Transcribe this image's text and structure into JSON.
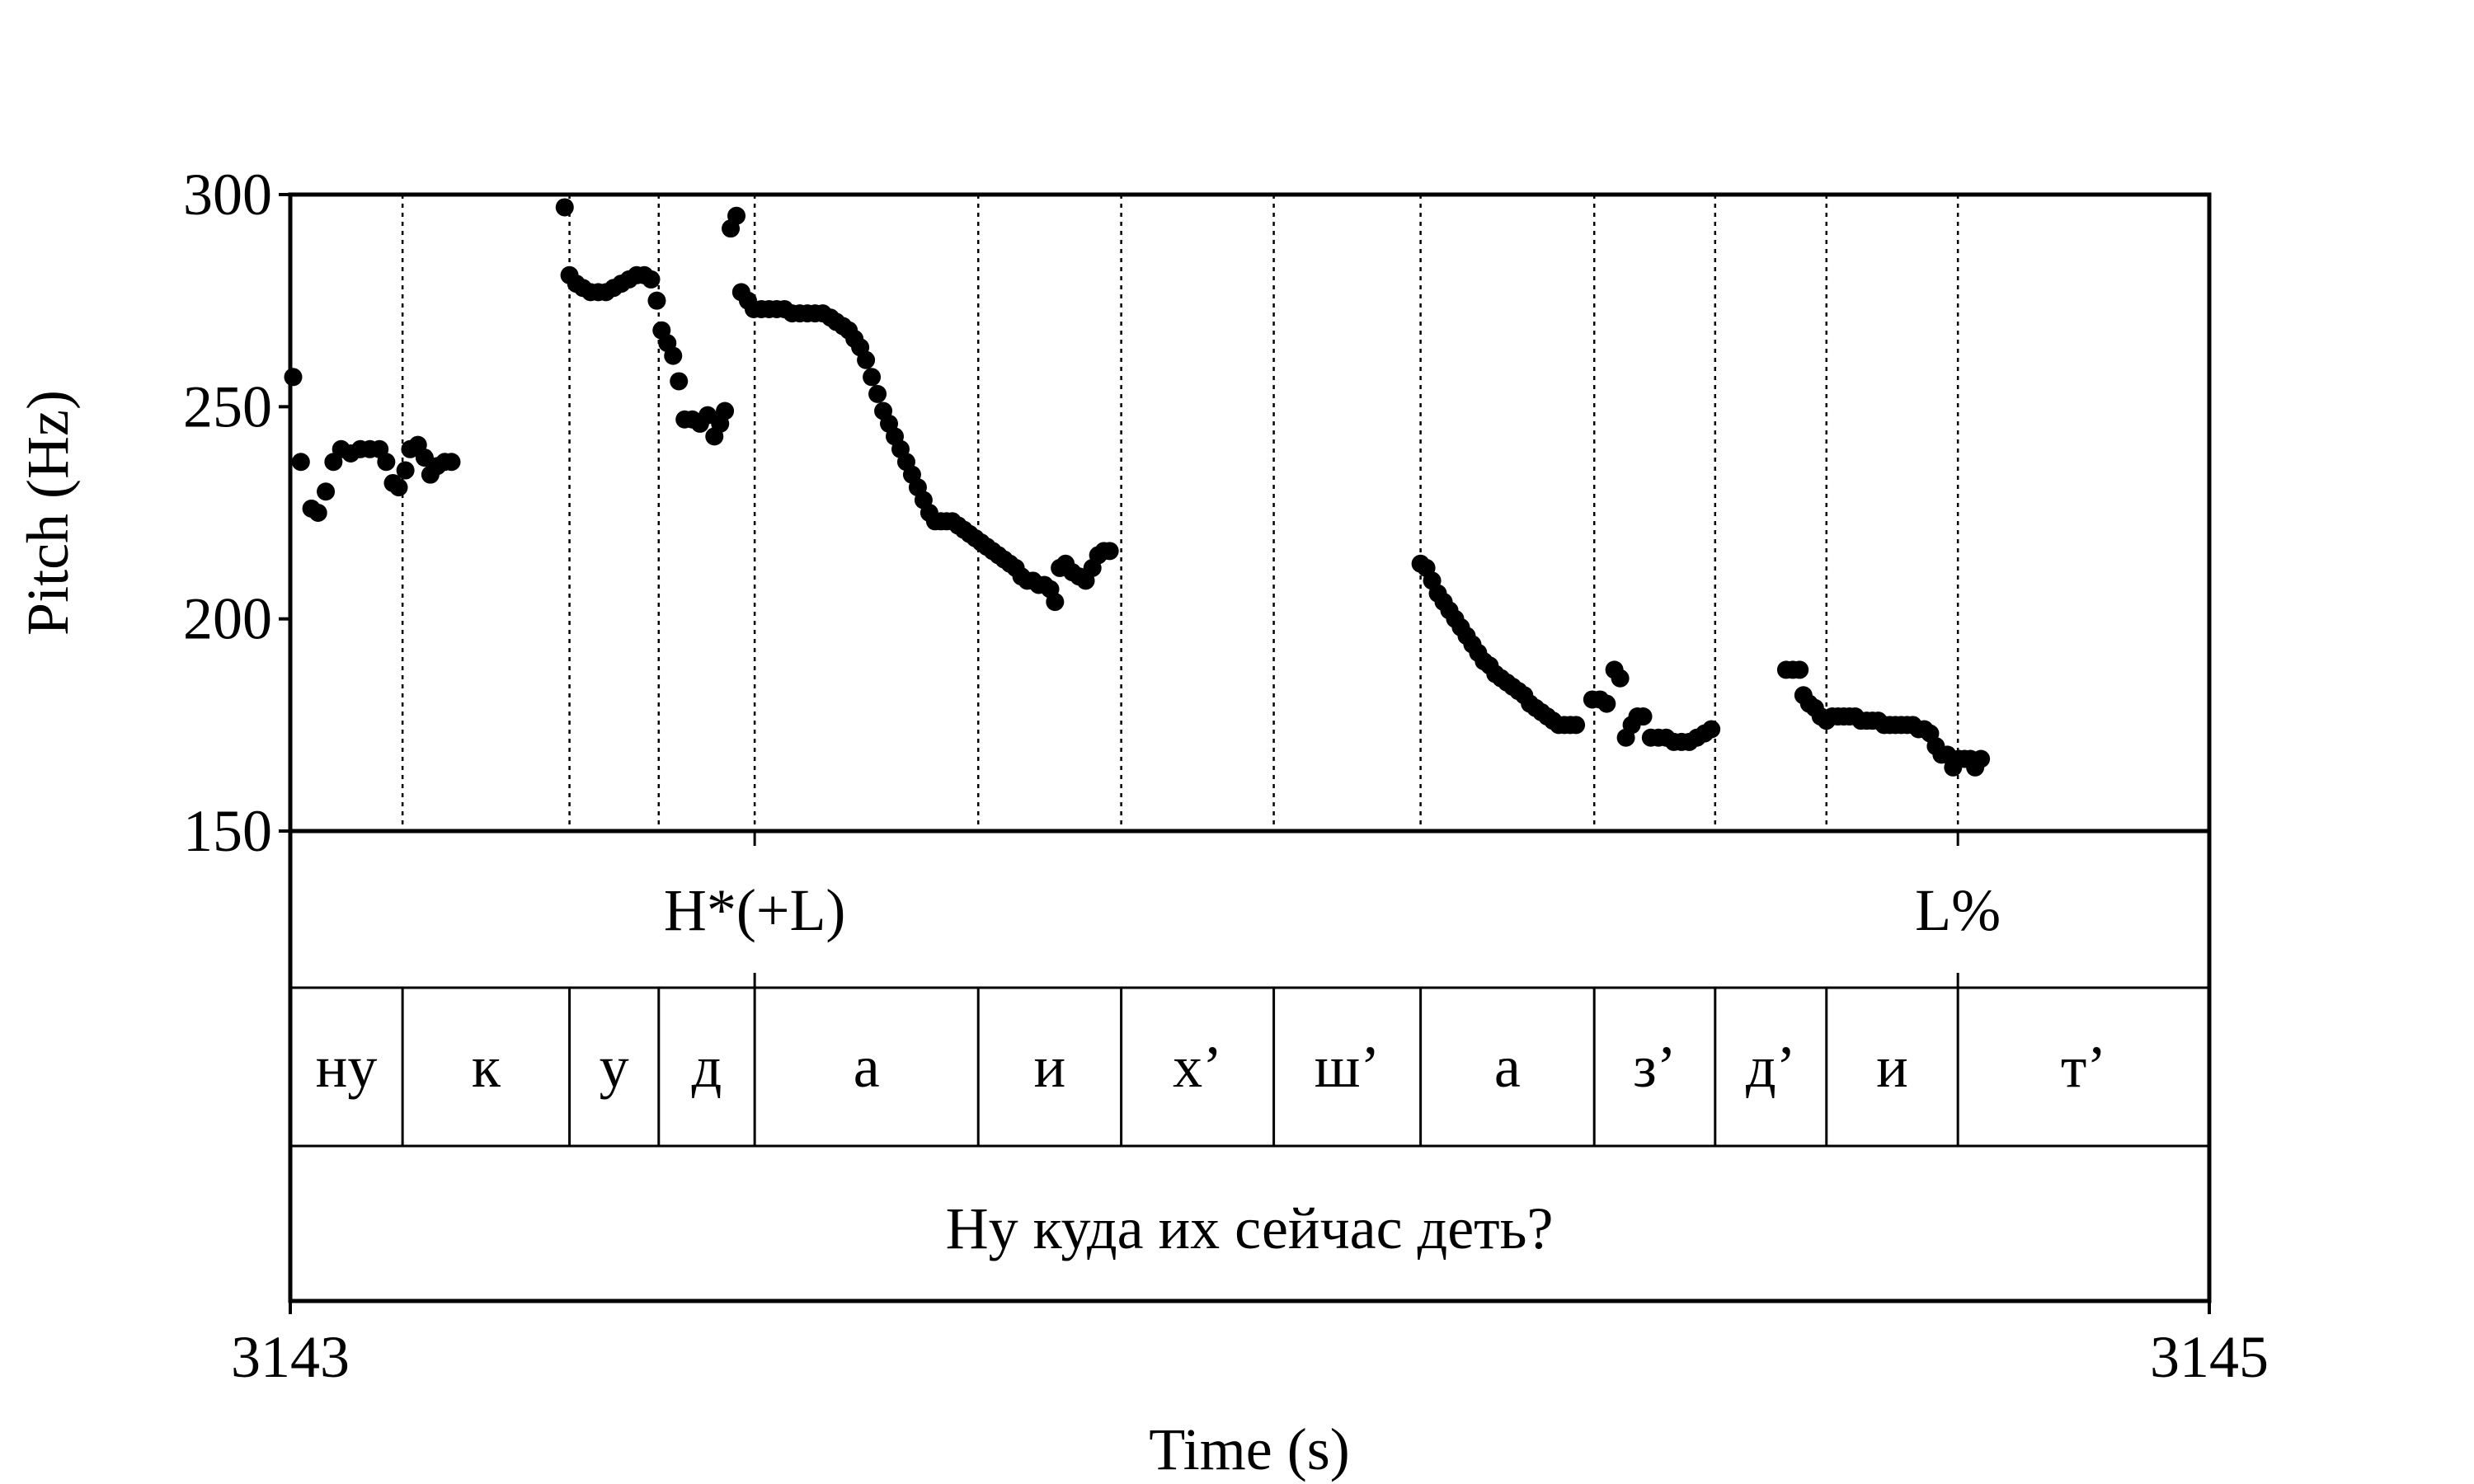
{
  "chart_data": {
    "type": "scatter",
    "ylabel": "Pitch (Hz)",
    "xlabel": "Time (s)",
    "xlim": [
      3143,
      3145
    ],
    "ylim": [
      150,
      300
    ],
    "x_ticks": [
      3143,
      3145
    ],
    "y_ticks": [
      150,
      200,
      250,
      300
    ],
    "boundaries": [
      3143.0,
      3143.117,
      3143.291,
      3143.384,
      3143.484,
      3143.717,
      3143.866,
      3144.025,
      3144.178,
      3144.359,
      3144.485,
      3144.601,
      3144.738,
      3145.0
    ],
    "tone_tier": [
      {
        "label": "H*(+L)",
        "time": 3143.484
      },
      {
        "label": "L%",
        "time": 3144.738
      }
    ],
    "segments": [
      "ну",
      "к",
      "у",
      "д",
      "а",
      "и",
      "х’",
      "ш’",
      "а",
      "з’",
      "д’",
      "и",
      "т’"
    ],
    "sentence": "Ну куда их сейчас деть?",
    "series": [
      {
        "values": [
          [
            3143.003,
            257
          ],
          [
            3143.011,
            237
          ],
          [
            3143.022,
            226
          ],
          [
            3143.029,
            225
          ],
          [
            3143.037,
            230
          ],
          [
            3143.045,
            237
          ],
          [
            3143.053,
            240
          ],
          [
            3143.063,
            239
          ],
          [
            3143.073,
            240
          ],
          [
            3143.083,
            240
          ],
          [
            3143.093,
            240
          ],
          [
            3143.1,
            237
          ],
          [
            3143.107,
            232
          ],
          [
            3143.113,
            231
          ],
          [
            3143.12,
            235
          ],
          [
            3143.125,
            240
          ],
          [
            3143.133,
            241
          ],
          [
            3143.14,
            238
          ],
          [
            3143.146,
            234
          ],
          [
            3143.153,
            236
          ],
          [
            3143.161,
            237
          ],
          [
            3143.168,
            237
          ],
          [
            3143.286,
            297
          ],
          [
            3143.291,
            281
          ],
          [
            3143.298,
            279
          ],
          [
            3143.305,
            278
          ],
          [
            3143.313,
            277
          ],
          [
            3143.321,
            277
          ],
          [
            3143.329,
            277
          ],
          [
            3143.337,
            278
          ],
          [
            3143.345,
            279
          ],
          [
            3143.353,
            280
          ],
          [
            3143.361,
            281
          ],
          [
            3143.369,
            281
          ],
          [
            3143.376,
            280
          ],
          [
            3143.382,
            275
          ],
          [
            3143.387,
            268
          ],
          [
            3143.393,
            265
          ],
          [
            3143.399,
            262
          ],
          [
            3143.405,
            256
          ],
          [
            3143.411,
            247
          ],
          [
            3143.419,
            247
          ],
          [
            3143.427,
            246
          ],
          [
            3143.435,
            248
          ],
          [
            3143.442,
            243
          ],
          [
            3143.448,
            246
          ],
          [
            3143.453,
            249
          ],
          [
            3143.459,
            292
          ],
          [
            3143.465,
            295
          ],
          [
            3143.47,
            277
          ],
          [
            3143.477,
            275
          ],
          [
            3143.483,
            273
          ],
          [
            3143.491,
            273
          ],
          [
            3143.499,
            273
          ],
          [
            3143.507,
            273
          ],
          [
            3143.515,
            273
          ],
          [
            3143.523,
            272
          ],
          [
            3143.531,
            272
          ],
          [
            3143.539,
            272
          ],
          [
            3143.547,
            272
          ],
          [
            3143.555,
            272
          ],
          [
            3143.563,
            271
          ],
          [
            3143.569,
            270
          ],
          [
            3143.576,
            269
          ],
          [
            3143.582,
            268
          ],
          [
            3143.588,
            266
          ],
          [
            3143.594,
            264
          ],
          [
            3143.6,
            261
          ],
          [
            3143.606,
            257
          ],
          [
            3143.612,
            253
          ],
          [
            3143.618,
            249
          ],
          [
            3143.624,
            246
          ],
          [
            3143.63,
            243
          ],
          [
            3143.636,
            240
          ],
          [
            3143.642,
            237
          ],
          [
            3143.648,
            234
          ],
          [
            3143.654,
            231
          ],
          [
            3143.66,
            228
          ],
          [
            3143.666,
            225
          ],
          [
            3143.672,
            223
          ],
          [
            3143.678,
            223
          ],
          [
            3143.684,
            223
          ],
          [
            3143.69,
            223
          ],
          [
            3143.696,
            222
          ],
          [
            3143.702,
            221
          ],
          [
            3143.708,
            220
          ],
          [
            3143.714,
            219
          ],
          [
            3143.72,
            218
          ],
          [
            3143.726,
            217
          ],
          [
            3143.732,
            216
          ],
          [
            3143.738,
            215
          ],
          [
            3143.744,
            214
          ],
          [
            3143.75,
            213
          ],
          [
            3143.756,
            212
          ],
          [
            3143.762,
            210
          ],
          [
            3143.768,
            209
          ],
          [
            3143.774,
            209
          ],
          [
            3143.78,
            208
          ],
          [
            3143.786,
            208
          ],
          [
            3143.792,
            207
          ],
          [
            3143.797,
            204
          ],
          [
            3143.802,
            212
          ],
          [
            3143.808,
            213
          ],
          [
            3143.815,
            211
          ],
          [
            3143.822,
            210
          ],
          [
            3143.829,
            209
          ],
          [
            3143.836,
            212
          ],
          [
            3143.842,
            215
          ],
          [
            3143.848,
            216
          ],
          [
            3143.854,
            216
          ],
          [
            3144.178,
            213
          ],
          [
            3144.184,
            212
          ],
          [
            3144.19,
            209
          ],
          [
            3144.196,
            206
          ],
          [
            3144.202,
            204
          ],
          [
            3144.208,
            202
          ],
          [
            3144.214,
            200
          ],
          [
            3144.22,
            198
          ],
          [
            3144.226,
            196
          ],
          [
            3144.232,
            194
          ],
          [
            3144.238,
            192
          ],
          [
            3144.244,
            190
          ],
          [
            3144.25,
            189
          ],
          [
            3144.256,
            187
          ],
          [
            3144.262,
            186
          ],
          [
            3144.268,
            185
          ],
          [
            3144.274,
            184
          ],
          [
            3144.28,
            183
          ],
          [
            3144.286,
            182
          ],
          [
            3144.292,
            180
          ],
          [
            3144.298,
            179
          ],
          [
            3144.304,
            178
          ],
          [
            3144.31,
            177
          ],
          [
            3144.316,
            176
          ],
          [
            3144.322,
            175
          ],
          [
            3144.328,
            175
          ],
          [
            3144.334,
            175
          ],
          [
            3144.34,
            175
          ],
          [
            3144.357,
            181
          ],
          [
            3144.365,
            181
          ],
          [
            3144.372,
            180
          ],
          [
            3144.38,
            188
          ],
          [
            3144.386,
            186
          ],
          [
            3144.392,
            172
          ],
          [
            3144.398,
            175
          ],
          [
            3144.404,
            177
          ],
          [
            3144.41,
            177
          ],
          [
            3144.418,
            172
          ],
          [
            3144.426,
            172
          ],
          [
            3144.434,
            172
          ],
          [
            3144.442,
            171
          ],
          [
            3144.45,
            171
          ],
          [
            3144.458,
            171
          ],
          [
            3144.466,
            172
          ],
          [
            3144.474,
            173
          ],
          [
            3144.481,
            174
          ],
          [
            3144.559,
            188
          ],
          [
            3144.566,
            188
          ],
          [
            3144.573,
            188
          ],
          [
            3144.577,
            182
          ],
          [
            3144.583,
            180
          ],
          [
            3144.589,
            179
          ],
          [
            3144.595,
            177
          ],
          [
            3144.601,
            176
          ],
          [
            3144.607,
            177
          ],
          [
            3144.613,
            177
          ],
          [
            3144.619,
            177
          ],
          [
            3144.625,
            177
          ],
          [
            3144.631,
            177
          ],
          [
            3144.637,
            176
          ],
          [
            3144.643,
            176
          ],
          [
            3144.649,
            176
          ],
          [
            3144.655,
            176
          ],
          [
            3144.661,
            175
          ],
          [
            3144.667,
            175
          ],
          [
            3144.673,
            175
          ],
          [
            3144.679,
            175
          ],
          [
            3144.685,
            175
          ],
          [
            3144.691,
            175
          ],
          [
            3144.697,
            174
          ],
          [
            3144.703,
            174
          ],
          [
            3144.709,
            173
          ],
          [
            3144.715,
            170
          ],
          [
            3144.721,
            168
          ],
          [
            3144.727,
            168
          ],
          [
            3144.733,
            165
          ],
          [
            3144.739,
            167
          ],
          [
            3144.745,
            167
          ],
          [
            3144.751,
            167
          ],
          [
            3144.756,
            165
          ],
          [
            3144.762,
            167
          ]
        ]
      }
    ],
    "grid": false
  }
}
